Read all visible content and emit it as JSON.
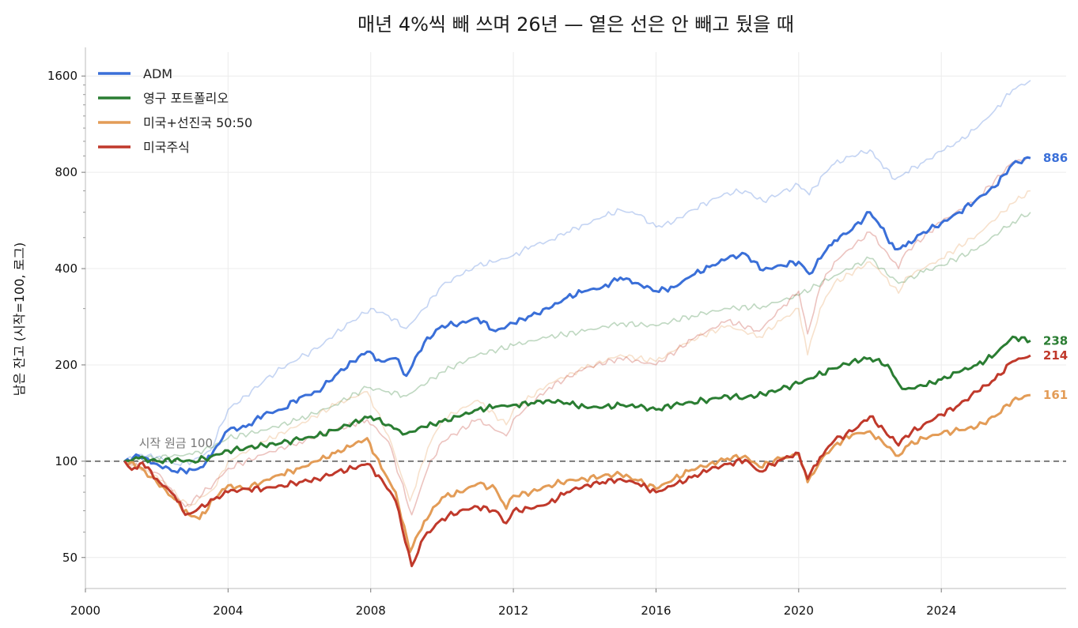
{
  "chart_data": {
    "type": "line",
    "title": "매년 4%씩 빼 쓰며 26년 — 옅은 선은 안 빼고 뒀을 때",
    "ylabel": "남은 잔고 (시작=100, 로그)",
    "xlabel": "",
    "y_scale": "log",
    "ylim": [
      40,
      1900
    ],
    "xlim": [
      2000,
      2027.5
    ],
    "x_ticks": [
      2000,
      2004,
      2008,
      2012,
      2016,
      2020,
      2024
    ],
    "y_ticks": [
      50,
      100,
      200,
      400,
      800,
      1600
    ],
    "grid": true,
    "legend_position": "top-left",
    "baseline": {
      "value": 100,
      "label": "시작 원금 100",
      "style": "dashed"
    },
    "series": [
      {
        "name": "ADM",
        "color": "#3a6fd8",
        "end_label": "886",
        "x": [
          2001.1,
          2001.5,
          2002.0,
          2002.5,
          2003.0,
          2003.3,
          2003.6,
          2004.0,
          2004.5,
          2005.0,
          2005.5,
          2006.0,
          2006.5,
          2007.0,
          2007.5,
          2007.9,
          2008.3,
          2008.7,
          2009.0,
          2009.5,
          2010.0,
          2010.5,
          2011.0,
          2011.5,
          2012.0,
          2012.5,
          2013.0,
          2013.5,
          2014.0,
          2014.5,
          2015.0,
          2015.5,
          2016.0,
          2016.5,
          2017.0,
          2017.5,
          2018.0,
          2018.5,
          2019.0,
          2019.5,
          2020.0,
          2020.3,
          2020.7,
          2021.0,
          2021.5,
          2022.0,
          2022.3,
          2022.7,
          2023.0,
          2023.5,
          2024.0,
          2024.5,
          2025.0,
          2025.5,
          2026.0,
          2026.5
        ],
        "values": [
          100,
          104,
          98,
          93,
          94,
          96,
          108,
          125,
          128,
          140,
          145,
          158,
          165,
          185,
          205,
          220,
          205,
          210,
          185,
          235,
          265,
          270,
          280,
          255,
          270,
          285,
          300,
          325,
          340,
          350,
          375,
          360,
          340,
          350,
          380,
          405,
          430,
          445,
          395,
          410,
          420,
          385,
          445,
          490,
          530,
          600,
          540,
          460,
          470,
          520,
          555,
          600,
          660,
          720,
          850,
          886
        ]
      },
      {
        "name": "영구 포트폴리오",
        "color": "#2a7d32",
        "end_label": "238",
        "x": [
          2001.1,
          2001.5,
          2002.0,
          2002.5,
          2003.0,
          2003.5,
          2004.0,
          2004.5,
          2005.0,
          2005.5,
          2006.0,
          2006.5,
          2007.0,
          2007.5,
          2008.0,
          2008.5,
          2008.8,
          2009.0,
          2009.5,
          2010.0,
          2010.5,
          2011.0,
          2011.5,
          2012.0,
          2012.5,
          2013.0,
          2013.5,
          2014.0,
          2014.5,
          2015.0,
          2015.5,
          2016.0,
          2016.5,
          2017.0,
          2017.5,
          2018.0,
          2018.5,
          2019.0,
          2019.5,
          2020.0,
          2020.5,
          2021.0,
          2021.5,
          2022.0,
          2022.5,
          2022.8,
          2023.0,
          2023.5,
          2024.0,
          2024.5,
          2025.0,
          2025.5,
          2026.0,
          2026.5
        ],
        "values": [
          100,
          102,
          100,
          101,
          100,
          103,
          108,
          110,
          112,
          114,
          117,
          120,
          125,
          132,
          138,
          130,
          125,
          122,
          128,
          133,
          138,
          145,
          148,
          150,
          152,
          155,
          152,
          148,
          147,
          150,
          148,
          145,
          150,
          153,
          156,
          160,
          158,
          162,
          168,
          175,
          185,
          195,
          205,
          210,
          200,
          175,
          168,
          172,
          180,
          190,
          200,
          215,
          245,
          238
        ]
      },
      {
        "name": "미국+선진국 50:50",
        "color": "#e39c57",
        "end_label": "161",
        "x": [
          2001.1,
          2001.5,
          2002.0,
          2002.5,
          2002.9,
          2003.2,
          2003.6,
          2004.0,
          2004.5,
          2005.0,
          2005.5,
          2006.0,
          2006.5,
          2007.0,
          2007.5,
          2007.9,
          2008.3,
          2008.7,
          2009.1,
          2009.5,
          2010.0,
          2010.5,
          2011.0,
          2011.5,
          2011.8,
          2012.0,
          2012.5,
          2013.0,
          2013.5,
          2014.0,
          2014.5,
          2015.0,
          2015.5,
          2016.0,
          2016.5,
          2017.0,
          2017.5,
          2018.0,
          2018.5,
          2018.9,
          2019.5,
          2020.0,
          2020.25,
          2020.6,
          2021.0,
          2021.5,
          2022.0,
          2022.4,
          2022.8,
          2023.0,
          2023.5,
          2024.0,
          2024.5,
          2025.0,
          2025.5,
          2026.0,
          2026.5
        ],
        "values": [
          100,
          96,
          86,
          76,
          68,
          66,
          76,
          84,
          82,
          87,
          91,
          95,
          100,
          106,
          112,
          118,
          95,
          80,
          52,
          65,
          77,
          80,
          85,
          82,
          71,
          78,
          80,
          84,
          87,
          88,
          90,
          91,
          87,
          82,
          88,
          94,
          98,
          102,
          104,
          96,
          102,
          105,
          86,
          100,
          112,
          121,
          124,
          113,
          104,
          111,
          118,
          122,
          125,
          128,
          138,
          155,
          161
        ]
      },
      {
        "name": "미국주식",
        "color": "#c0392b",
        "end_label": "214",
        "x": [
          2001.1,
          2001.3,
          2001.6,
          2002.0,
          2002.5,
          2002.8,
          2003.1,
          2003.6,
          2004.0,
          2004.5,
          2005.0,
          2005.5,
          2006.0,
          2006.5,
          2007.0,
          2007.5,
          2007.9,
          2008.3,
          2008.7,
          2009.15,
          2009.5,
          2010.0,
          2010.5,
          2011.0,
          2011.5,
          2011.8,
          2012.0,
          2012.5,
          2013.0,
          2013.5,
          2014.0,
          2014.5,
          2015.0,
          2015.5,
          2016.0,
          2016.5,
          2017.0,
          2017.5,
          2018.0,
          2018.5,
          2018.9,
          2019.5,
          2020.0,
          2020.25,
          2020.6,
          2021.0,
          2021.5,
          2022.0,
          2022.4,
          2022.8,
          2023.0,
          2023.5,
          2024.0,
          2024.5,
          2025.0,
          2025.5,
          2026.0,
          2026.5
        ],
        "values": [
          100,
          94,
          99,
          88,
          78,
          68,
          70,
          76,
          80,
          82,
          82,
          84,
          86,
          88,
          92,
          95,
          98,
          88,
          75,
          47,
          58,
          66,
          70,
          72,
          70,
          64,
          70,
          71,
          74,
          80,
          84,
          86,
          88,
          85,
          80,
          84,
          89,
          94,
          98,
          101,
          93,
          101,
          106,
          88,
          103,
          116,
          124,
          138,
          125,
          112,
          120,
          130,
          140,
          150,
          165,
          180,
          205,
          214
        ]
      },
      {
        "name": "",
        "color": "#3a6fd8",
        "faded": true,
        "x": [
          2001.1,
          2001.5,
          2002.0,
          2002.5,
          2003.0,
          2003.5,
          2004.0,
          2004.5,
          2005.0,
          2005.5,
          2006.0,
          2006.5,
          2007.0,
          2007.5,
          2008.0,
          2008.5,
          2009.0,
          2009.5,
          2010.0,
          2010.5,
          2011.0,
          2011.5,
          2012.0,
          2012.5,
          2013.0,
          2013.5,
          2014.0,
          2014.5,
          2015.0,
          2015.5,
          2016.0,
          2016.5,
          2017.0,
          2017.5,
          2018.0,
          2018.5,
          2019.0,
          2019.5,
          2020.0,
          2020.3,
          2020.7,
          2021.0,
          2021.5,
          2022.0,
          2022.3,
          2022.7,
          2023.0,
          2023.5,
          2024.0,
          2024.5,
          2025.0,
          2025.5,
          2026.0,
          2026.5
        ],
        "values": [
          100,
          105,
          103,
          98,
          100,
          108,
          145,
          160,
          178,
          195,
          210,
          225,
          250,
          275,
          300,
          285,
          260,
          300,
          355,
          380,
          410,
          420,
          440,
          470,
          490,
          520,
          550,
          580,
          610,
          590,
          540,
          560,
          610,
          650,
          690,
          700,
          650,
          690,
          730,
          680,
          790,
          850,
          900,
          940,
          860,
          760,
          800,
          860,
          930,
          1000,
          1100,
          1250,
          1450,
          1550
        ]
      },
      {
        "name": "",
        "color": "#2a7d32",
        "faded": true,
        "x": [
          2001.1,
          2002.0,
          2003.0,
          2003.5,
          2004.0,
          2005.0,
          2006.0,
          2007.0,
          2007.9,
          2008.5,
          2009.0,
          2010.0,
          2011.0,
          2012.0,
          2013.0,
          2014.0,
          2015.0,
          2016.0,
          2017.0,
          2018.0,
          2019.0,
          2020.0,
          2021.0,
          2022.0,
          2022.8,
          2023.5,
          2024.0,
          2025.0,
          2026.0,
          2026.5
        ],
        "values": [
          100,
          103,
          105,
          110,
          118,
          125,
          135,
          150,
          170,
          165,
          160,
          190,
          215,
          230,
          245,
          255,
          270,
          265,
          285,
          300,
          305,
          330,
          380,
          430,
          360,
          390,
          410,
          460,
          560,
          600
        ]
      },
      {
        "name": "",
        "color": "#e39c57",
        "faded": true,
        "x": [
          2001.1,
          2002.0,
          2002.9,
          2003.6,
          2004.0,
          2005.0,
          2006.0,
          2007.0,
          2007.9,
          2008.5,
          2009.1,
          2009.6,
          2010.0,
          2011.0,
          2011.8,
          2012.0,
          2013.0,
          2014.0,
          2015.0,
          2016.0,
          2017.0,
          2018.0,
          2018.9,
          2019.5,
          2020.0,
          2020.25,
          2020.6,
          2021.0,
          2022.0,
          2022.4,
          2022.8,
          2023.0,
          2024.0,
          2025.0,
          2026.0,
          2026.5
        ],
        "values": [
          100,
          90,
          72,
          82,
          100,
          115,
          130,
          150,
          165,
          120,
          75,
          110,
          135,
          155,
          130,
          145,
          175,
          195,
          215,
          205,
          240,
          265,
          245,
          275,
          300,
          215,
          300,
          360,
          420,
          380,
          335,
          375,
          430,
          510,
          640,
          700
        ]
      },
      {
        "name": "",
        "color": "#c0392b",
        "faded": true,
        "x": [
          2001.1,
          2002.0,
          2002.8,
          2003.6,
          2004.0,
          2005.0,
          2006.0,
          2007.0,
          2007.9,
          2008.5,
          2009.15,
          2009.6,
          2010.0,
          2011.0,
          2011.8,
          2012.0,
          2013.0,
          2014.0,
          2015.0,
          2016.0,
          2017.0,
          2018.0,
          2018.9,
          2019.5,
          2020.0,
          2020.25,
          2020.6,
          2021.0,
          2022.0,
          2022.4,
          2022.8,
          2023.0,
          2024.0,
          2025.0,
          2026.0,
          2026.5
        ],
        "values": [
          100,
          92,
          72,
          85,
          95,
          105,
          115,
          125,
          135,
          115,
          68,
          95,
          115,
          135,
          120,
          135,
          170,
          195,
          210,
          200,
          240,
          275,
          255,
          300,
          340,
          250,
          350,
          420,
          520,
          460,
          400,
          450,
          560,
          660,
          860,
          890
        ]
      }
    ]
  }
}
